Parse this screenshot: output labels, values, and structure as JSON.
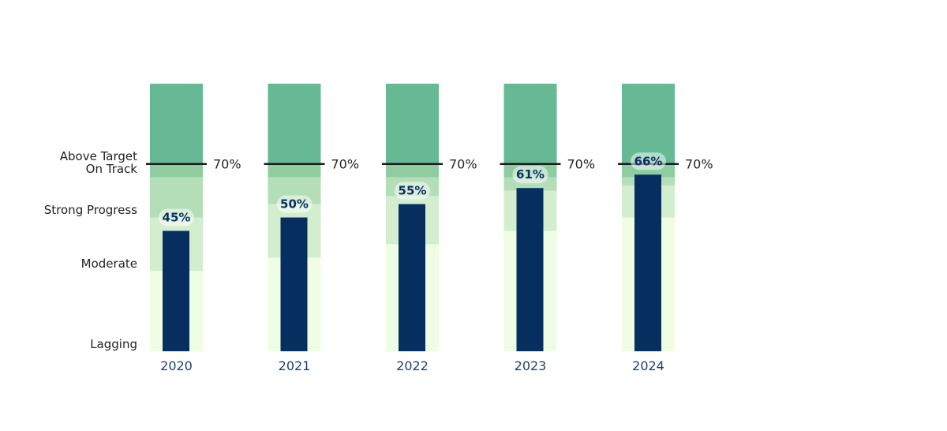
{
  "chart_data": {
    "type": "bullet",
    "categories": [
      "2020",
      "2021",
      "2022",
      "2023",
      "2024"
    ],
    "values": [
      45,
      50,
      55,
      61,
      66
    ],
    "value_labels": [
      "45%",
      "50%",
      "55%",
      "61%",
      "66%"
    ],
    "target": 70,
    "target_label": "70%",
    "ylim": [
      0,
      100
    ],
    "bands": [
      {
        "name": "Lagging",
        "upper": [
          30,
          35,
          40,
          45,
          50
        ],
        "color": "#effde5"
      },
      {
        "name": "Moderate",
        "upper": [
          50,
          55,
          58,
          60,
          62
        ],
        "color": "#d2eecf"
      },
      {
        "name": "Strong Progress",
        "upper": [
          65,
          65,
          65,
          65,
          65
        ],
        "color": "#b3deb8"
      },
      {
        "name": "On Track",
        "upper": [
          70,
          70,
          70,
          70,
          70
        ],
        "color": "#8fcca0"
      },
      {
        "name": "Above Target",
        "upper": [
          100,
          100,
          100,
          100,
          100
        ],
        "color": "#66b994"
      }
    ],
    "y_labels": [
      "Above Target",
      "On Track",
      "Strong Progress",
      "Moderate",
      "Lagging"
    ],
    "bar_color": "#062f5f",
    "target_color": "#1a1a1a"
  }
}
